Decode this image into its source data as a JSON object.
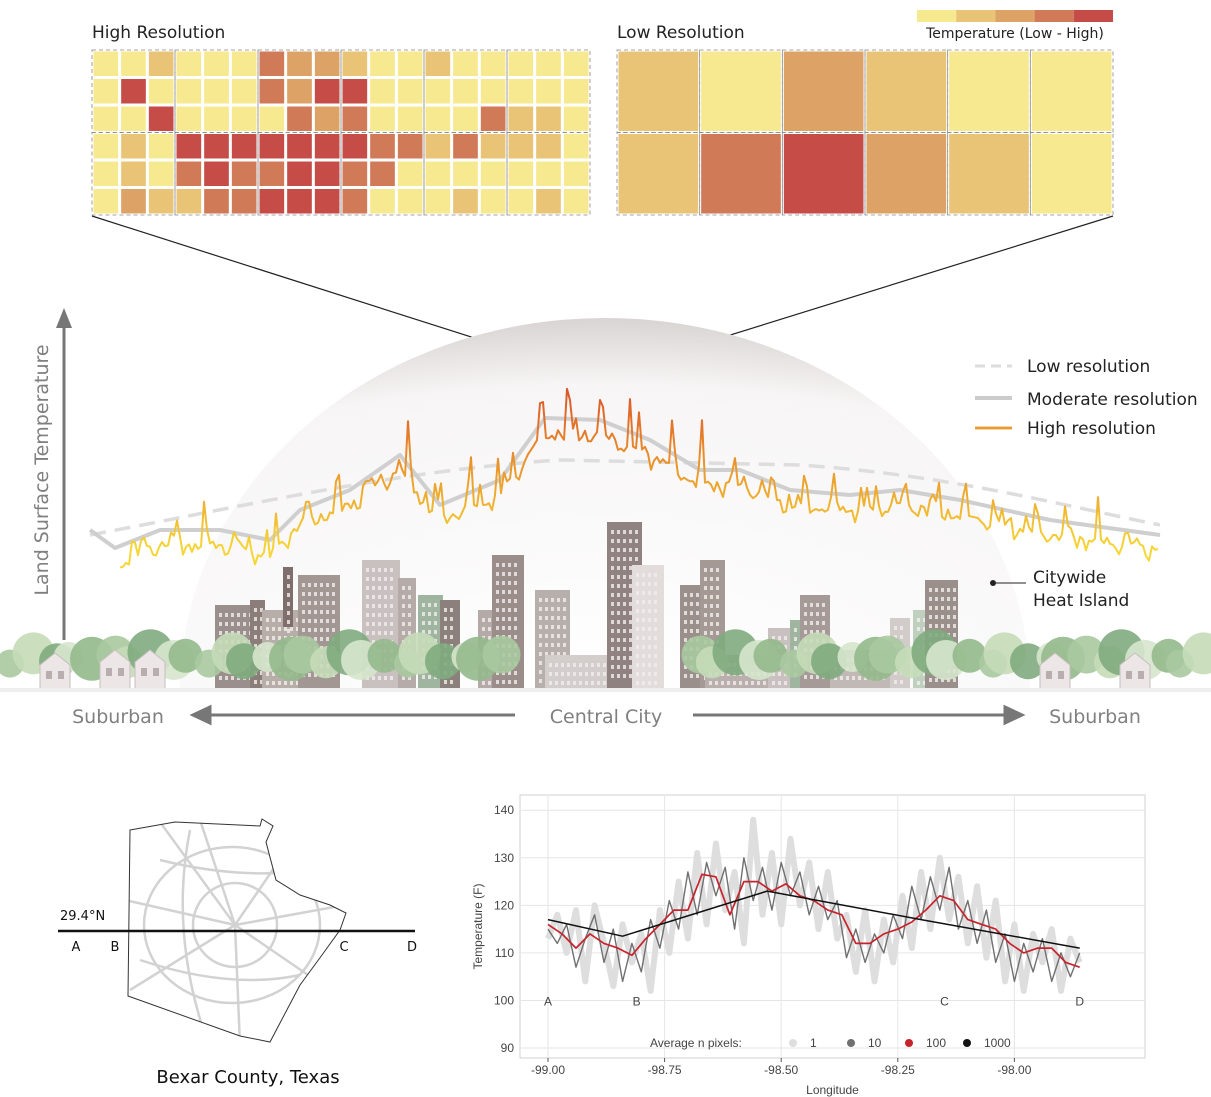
{
  "heatmaps": {
    "legend": {
      "label": "Temperature (Low - High)",
      "colors": [
        "#f6e98f",
        "#e9c476",
        "#dda265",
        "#d07a58",
        "#c54c47"
      ]
    },
    "high": {
      "title": "High Resolution",
      "levels": [
        [
          0,
          0,
          1,
          0,
          0,
          0,
          3,
          2,
          2,
          1,
          0,
          0,
          1,
          0,
          0,
          0,
          0,
          0
        ],
        [
          0,
          4,
          0,
          0,
          0,
          0,
          3,
          2,
          4,
          4,
          0,
          0,
          0,
          0,
          0,
          0,
          0,
          0
        ],
        [
          0,
          0,
          4,
          0,
          0,
          0,
          0,
          3,
          2,
          3,
          0,
          0,
          0,
          0,
          3,
          1,
          1,
          0
        ],
        [
          0,
          1,
          0,
          4,
          4,
          4,
          4,
          4,
          4,
          4,
          3,
          3,
          1,
          3,
          1,
          1,
          1,
          0
        ],
        [
          0,
          1,
          0,
          3,
          4,
          3,
          3,
          4,
          4,
          3,
          3,
          0,
          0,
          0,
          0,
          0,
          0,
          0
        ],
        [
          0,
          2,
          1,
          1,
          3,
          3,
          4,
          4,
          4,
          3,
          0,
          0,
          0,
          1,
          0,
          0,
          1,
          0
        ]
      ]
    },
    "low": {
      "title": "Low Resolution",
      "levels": [
        [
          1,
          0,
          2,
          1,
          0,
          0
        ],
        [
          1,
          3,
          4,
          2,
          1,
          0
        ]
      ]
    }
  },
  "diagram": {
    "y_axis_label": "Land Surface Temperature",
    "legend": [
      "Low resolution",
      "Moderate resolution",
      "High resolution"
    ],
    "heat_island_label": [
      "Citywide",
      "Heat Island"
    ],
    "bottom_labels": [
      "Suburban",
      "Central City",
      "Suburban"
    ]
  },
  "map": {
    "latitude_label": "29.4°N",
    "points": [
      "A",
      "B",
      "C",
      "D"
    ],
    "caption": "Bexar County, Texas"
  },
  "chart_data": {
    "type": "line",
    "x_label": "Longitude",
    "y_label": "Temperature (F)",
    "legend_title": "Average n pixels:",
    "grid": true,
    "xlim": [
      -99.06,
      -97.72
    ],
    "ylim": [
      87.9,
      143.2
    ],
    "xticks": [
      {
        "value": -99,
        "label": "-99.00"
      },
      {
        "value": -98.75,
        "label": "-98.75"
      },
      {
        "value": -98.5,
        "label": "-98.50"
      },
      {
        "value": -98.25,
        "label": "-98.25"
      },
      {
        "value": -98,
        "label": "-98.00"
      }
    ],
    "yticks": [
      90,
      100,
      110,
      120,
      130,
      140
    ],
    "x": [
      -99.0,
      -98.98,
      -98.96,
      -98.94,
      -98.92,
      -98.9,
      -98.88,
      -98.86,
      -98.84,
      -98.82,
      -98.8,
      -98.78,
      -98.76,
      -98.74,
      -98.72,
      -98.7,
      -98.68,
      -98.66,
      -98.64,
      -98.62,
      -98.6,
      -98.58,
      -98.56,
      -98.54,
      -98.52,
      -98.5,
      -98.48,
      -98.46,
      -98.44,
      -98.42,
      -98.4,
      -98.38,
      -98.36,
      -98.34,
      -98.32,
      -98.3,
      -98.28,
      -98.26,
      -98.24,
      -98.22,
      -98.2,
      -98.18,
      -98.16,
      -98.14,
      -98.12,
      -98.1,
      -98.08,
      -98.06,
      -98.04,
      -98.02,
      -98.0,
      -97.98,
      -97.96,
      -97.94,
      -97.92,
      -97.9,
      -97.88,
      -97.86
    ],
    "series": [
      {
        "name": "1",
        "color": "#dedede",
        "values": [
          113,
          118,
          110,
          119,
          104,
          120,
          112,
          103,
          116,
          108,
          114,
          102,
          119,
          110,
          125,
          113,
          131,
          116,
          133,
          119,
          127,
          112,
          138,
          118,
          131,
          116,
          134,
          120,
          129,
          115,
          127,
          113,
          118,
          106,
          119,
          104,
          117,
          108,
          122,
          111,
          127,
          115,
          130,
          117,
          126,
          112,
          124,
          109,
          121,
          104,
          116,
          102,
          114,
          108,
          115,
          102,
          113,
          108
        ]
      },
      {
        "name": "10",
        "color": "#707070",
        "values": [
          115,
          112,
          116,
          107,
          113,
          118,
          108,
          115,
          104,
          112,
          106,
          117,
          111,
          121,
          115,
          127,
          118,
          129,
          122,
          128,
          115,
          130,
          121,
          128,
          119,
          129,
          122,
          127,
          118,
          124,
          117,
          121,
          109,
          115,
          108,
          114,
          110,
          118,
          113,
          124,
          117,
          126,
          119,
          128,
          115,
          121,
          112,
          119,
          108,
          114,
          104,
          112,
          106,
          113,
          104,
          110,
          105,
          110
        ]
      },
      {
        "name": "100",
        "color": "#c8232c",
        "x": [
          -99.0,
          -98.97,
          -98.94,
          -98.91,
          -98.88,
          -98.85,
          -98.82,
          -98.79,
          -98.76,
          -98.73,
          -98.7,
          -98.67,
          -98.64,
          -98.61,
          -98.58,
          -98.55,
          -98.52,
          -98.49,
          -98.46,
          -98.43,
          -98.4,
          -98.37,
          -98.34,
          -98.31,
          -98.28,
          -98.25,
          -98.22,
          -98.19,
          -98.16,
          -98.13,
          -98.1,
          -98.07,
          -98.04,
          -98.01,
          -97.98,
          -97.95,
          -97.92,
          -97.89,
          -97.86
        ],
        "values": [
          116,
          114,
          111,
          114,
          112,
          111,
          109.5,
          113,
          116,
          119,
          119,
          126.5,
          126,
          118,
          125,
          125,
          123,
          124.5,
          122,
          121,
          119,
          118,
          112,
          112,
          114,
          115,
          116.5,
          119,
          122,
          121,
          117,
          116,
          115,
          112,
          110,
          111,
          111,
          108,
          107
        ]
      },
      {
        "name": "1000",
        "color": "#111111",
        "x": [
          -99.0,
          -98.84,
          -98.53,
          -98.2,
          -97.86
        ],
        "values": [
          117,
          113.5,
          123,
          117,
          111
        ]
      }
    ],
    "annotations": [
      {
        "text": "A",
        "x": -99.0,
        "y": 100
      },
      {
        "text": "B",
        "x": -98.81,
        "y": 100
      },
      {
        "text": "C",
        "x": -98.15,
        "y": 100
      },
      {
        "text": "D",
        "x": -97.86,
        "y": 100
      }
    ]
  }
}
